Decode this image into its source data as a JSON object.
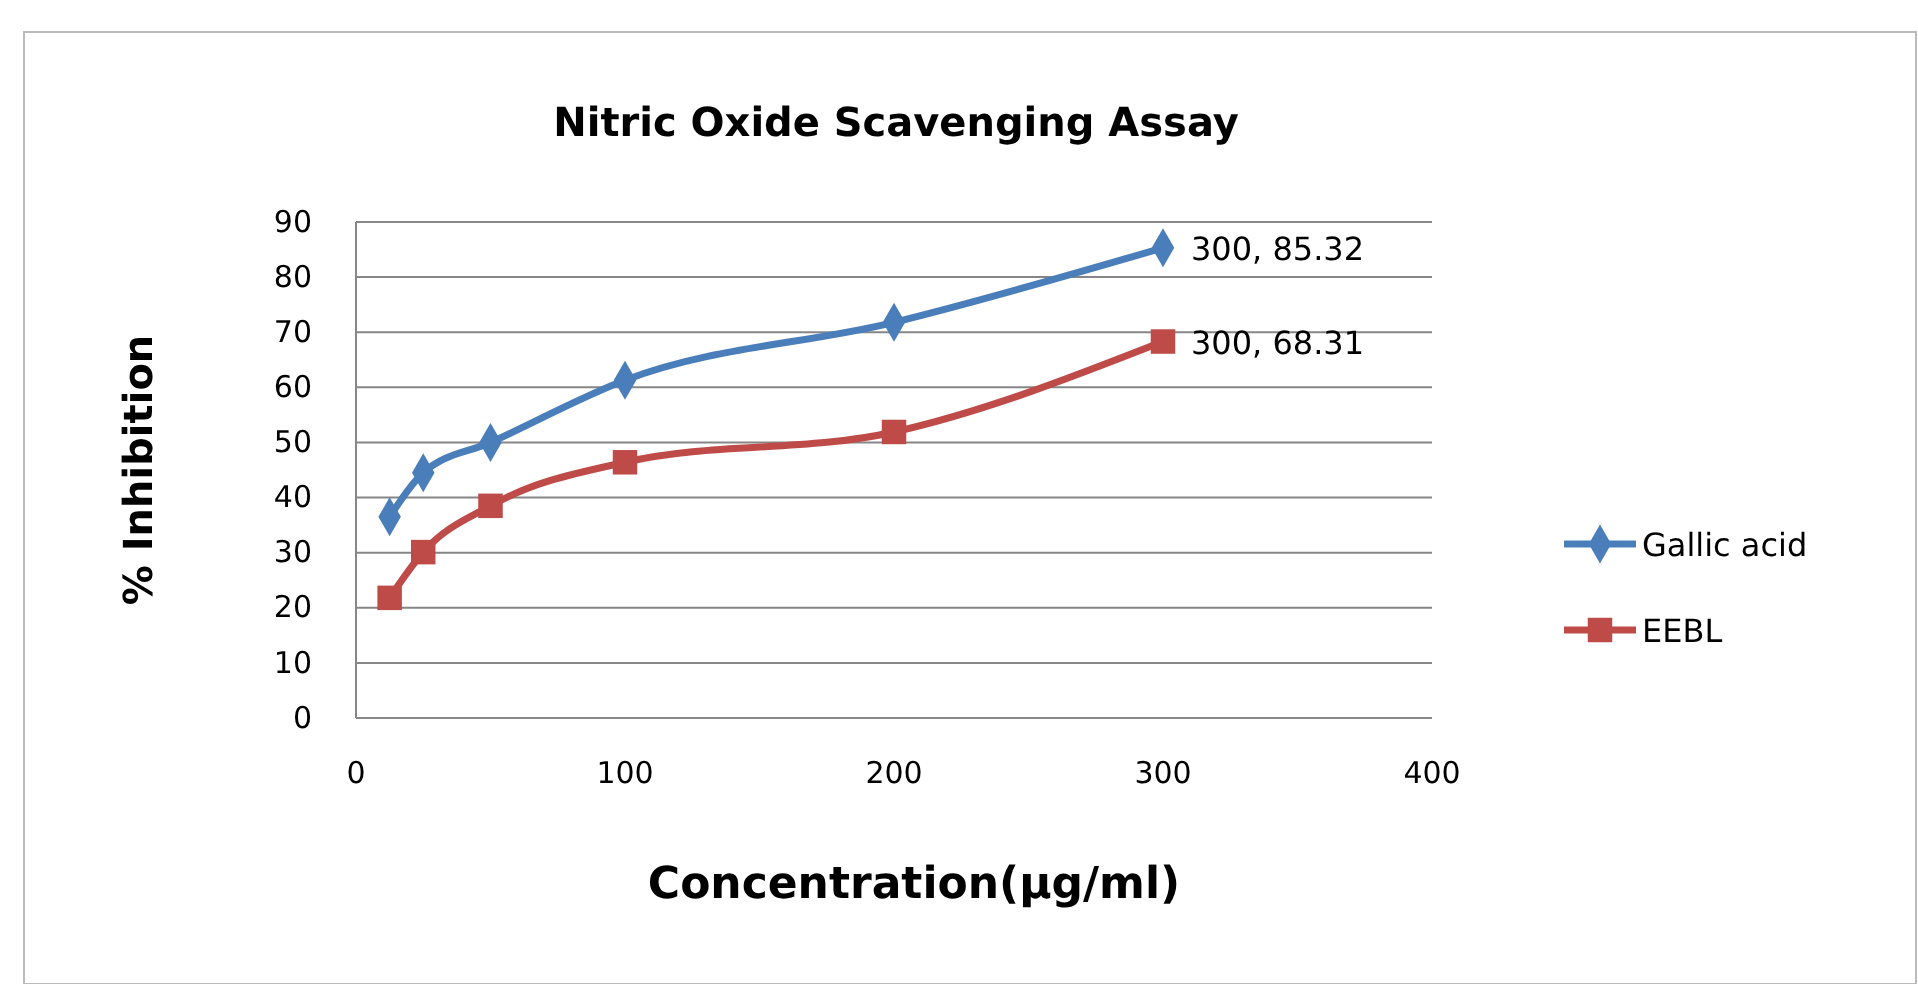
{
  "chart_data": {
    "type": "line",
    "title": "Nitric Oxide Scavenging Assay",
    "xlabel": "Concentration(µg/ml)",
    "ylabel": "% Inhibition",
    "x": [
      12.5,
      25,
      50,
      100,
      200,
      300
    ],
    "series": [
      {
        "name": "Gallic acid",
        "color": "#4a7ebb",
        "marker": "diamond",
        "values": [
          36.5,
          44.5,
          50,
          61.3,
          71.8,
          85.32
        ],
        "value_labels": [
          null,
          null,
          null,
          null,
          null,
          "300, 85.32"
        ]
      },
      {
        "name": "EEBL",
        "color": "#be4b48",
        "marker": "square",
        "values": [
          21.8,
          30.1,
          38.5,
          46.4,
          51.9,
          68.31
        ],
        "value_labels": [
          null,
          null,
          null,
          null,
          null,
          "300, 68.31"
        ]
      }
    ],
    "xlim": [
      0,
      400
    ],
    "xticks": [
      0,
      100,
      200,
      300,
      400
    ],
    "ylim": [
      0,
      90
    ],
    "yticks": [
      0,
      10,
      20,
      30,
      40,
      50,
      60,
      70,
      80,
      90
    ],
    "grid": "y",
    "legend": "right",
    "line_style": "solid"
  }
}
